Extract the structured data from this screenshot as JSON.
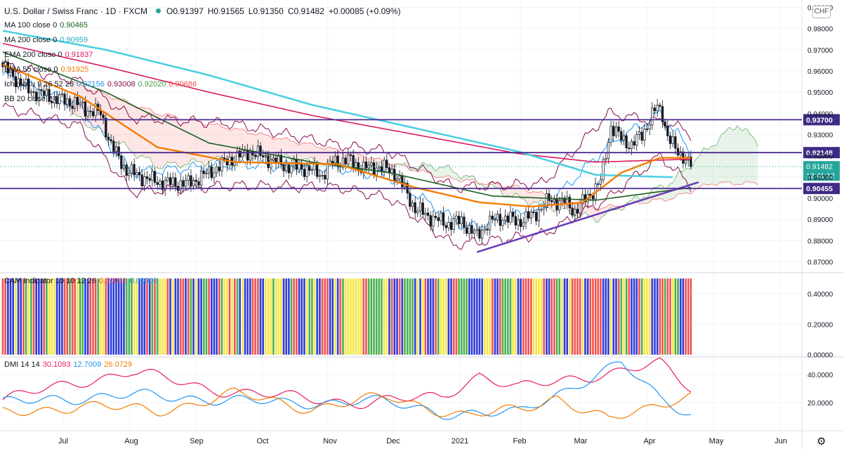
{
  "header": {
    "symbol": "U.S. Dollar / Swiss Franc · 1D · FXCM",
    "ohlc": {
      "open": "O0.91397",
      "high": "H0.91565",
      "low": "L0.91350",
      "close": "C0.91482",
      "change": "+0.00085 (+0.09%)"
    },
    "status_color": "#26a69a"
  },
  "currency": "CHF",
  "indicators": [
    {
      "label": "MA 100 close 0",
      "value": "0.90465",
      "color": "#1b5e20"
    },
    {
      "label": "MA 200 close 0",
      "value": "0.90959",
      "color": "#4dd0e1"
    },
    {
      "label": "EMA 200 close 0",
      "value": "0.91837",
      "color": "#d81b60"
    },
    {
      "label": "EMA 55 close 0",
      "value": "0.91925",
      "color": "#f57c00"
    },
    {
      "label": "Ichimoku 9 26 52 26",
      "values": [
        "0.92156",
        "0.93008",
        "0.92020",
        "0.90686"
      ],
      "colors": [
        "#2196f3",
        "#880e4f",
        "#43a047",
        "#ef5350"
      ]
    },
    {
      "label": "BB 20 close 2 0",
      "value": "",
      "color": "#880e4f"
    }
  ],
  "cam_legend": {
    "label": "CAM Indicator 10 10 12 26",
    "values": [
      "0.50000",
      "0.00000"
    ],
    "colors": [
      "#ef5350",
      "#2196f3"
    ]
  },
  "dmi_legend": {
    "label": "DMI 14 14",
    "values": [
      "30.1093",
      "12.7009",
      "26.0729"
    ],
    "colors": [
      "#e91e63",
      "#2196f3",
      "#f57c00"
    ]
  },
  "chart_data": {
    "type": "candlestick",
    "price_axis": {
      "ticks": [
        "0.99000",
        "0.98000",
        "0.97000",
        "0.96000",
        "0.95000",
        "0.94000",
        "0.93000",
        "0.92000",
        "0.91000",
        "0.90000",
        "0.89000",
        "0.88000",
        "0.87000"
      ],
      "range": [
        0.8655,
        0.9935
      ]
    },
    "levels": [
      {
        "value": 0.937,
        "label": "0.93700"
      },
      {
        "value": 0.92148,
        "label": "0.92148"
      },
      {
        "value": 0.90455,
        "label": "0.90455"
      }
    ],
    "last_price": {
      "value": 0.91482,
      "label": "0.91482",
      "countdown": "12:41:12"
    },
    "time_axis": [
      "Jul",
      "Aug",
      "Sep",
      "Oct",
      "Nov",
      "Dec",
      "2021",
      "Feb",
      "Mar",
      "Apr",
      "May",
      "Jun"
    ],
    "anchors": {
      "close": [
        [
          0,
          0.962
        ],
        [
          10,
          0.951
        ],
        [
          20,
          0.947
        ],
        [
          28,
          0.945
        ],
        [
          32,
          0.942
        ],
        [
          38,
          0.94
        ],
        [
          42,
          0.925
        ],
        [
          48,
          0.913
        ],
        [
          56,
          0.909
        ],
        [
          64,
          0.907
        ],
        [
          72,
          0.907
        ],
        [
          80,
          0.912
        ],
        [
          88,
          0.918
        ],
        [
          96,
          0.922
        ],
        [
          104,
          0.918
        ],
        [
          110,
          0.915
        ],
        [
          118,
          0.914
        ],
        [
          124,
          0.911
        ],
        [
          128,
          0.917
        ],
        [
          134,
          0.918
        ],
        [
          140,
          0.914
        ],
        [
          146,
          0.915
        ],
        [
          152,
          0.912
        ],
        [
          156,
          0.904
        ],
        [
          160,
          0.895
        ],
        [
          166,
          0.891
        ],
        [
          172,
          0.888
        ],
        [
          178,
          0.889
        ],
        [
          184,
          0.882
        ],
        [
          188,
          0.888
        ],
        [
          194,
          0.891
        ],
        [
          200,
          0.889
        ],
        [
          206,
          0.892
        ],
        [
          212,
          0.899
        ],
        [
          218,
          0.898
        ],
        [
          222,
          0.894
        ],
        [
          228,
          0.902
        ],
        [
          232,
          0.908
        ],
        [
          236,
          0.934
        ],
        [
          240,
          0.928
        ],
        [
          244,
          0.925
        ],
        [
          248,
          0.93
        ],
        [
          252,
          0.939
        ],
        [
          254,
          0.943
        ],
        [
          256,
          0.94
        ],
        [
          258,
          0.929
        ],
        [
          261,
          0.923
        ],
        [
          264,
          0.92
        ],
        [
          267,
          0.9148
        ]
      ],
      "ma100": [
        [
          0,
          0.969
        ],
        [
          40,
          0.95
        ],
        [
          80,
          0.926
        ],
        [
          120,
          0.917
        ],
        [
          150,
          0.912
        ],
        [
          190,
          0.901
        ],
        [
          230,
          0.899
        ],
        [
          267,
          0.905
        ]
      ],
      "ma200": [
        [
          0,
          0.979
        ],
        [
          40,
          0.97
        ],
        [
          80,
          0.958
        ],
        [
          120,
          0.944
        ],
        [
          160,
          0.933
        ],
        [
          200,
          0.922
        ],
        [
          230,
          0.911
        ],
        [
          267,
          0.9096
        ]
      ],
      "ema200": [
        [
          0,
          0.973
        ],
        [
          40,
          0.962
        ],
        [
          80,
          0.95
        ],
        [
          120,
          0.939
        ],
        [
          160,
          0.93
        ],
        [
          200,
          0.921
        ],
        [
          230,
          0.917
        ],
        [
          267,
          0.9184
        ]
      ],
      "ema55": [
        [
          0,
          0.963
        ],
        [
          30,
          0.948
        ],
        [
          60,
          0.924
        ],
        [
          90,
          0.917
        ],
        [
          130,
          0.916
        ],
        [
          160,
          0.905
        ],
        [
          185,
          0.898
        ],
        [
          205,
          0.896
        ],
        [
          225,
          0.898
        ],
        [
          240,
          0.912
        ],
        [
          255,
          0.919
        ],
        [
          267,
          0.919
        ]
      ],
      "bb_upper": [
        [
          0,
          0.963
        ],
        [
          30,
          0.955
        ],
        [
          50,
          0.938
        ],
        [
          90,
          0.935
        ],
        [
          130,
          0.925
        ],
        [
          150,
          0.922
        ],
        [
          175,
          0.905
        ],
        [
          210,
          0.907
        ],
        [
          235,
          0.94
        ],
        [
          260,
          0.935
        ],
        [
          267,
          0.93
        ]
      ],
      "bb_lower": [
        [
          0,
          0.943
        ],
        [
          30,
          0.934
        ],
        [
          50,
          0.903
        ],
        [
          90,
          0.906
        ],
        [
          130,
          0.905
        ],
        [
          150,
          0.9
        ],
        [
          175,
          0.878
        ],
        [
          210,
          0.883
        ],
        [
          235,
          0.9
        ],
        [
          255,
          0.92
        ],
        [
          267,
          0.906
        ]
      ],
      "tenkan": [
        [
          0,
          0.958
        ],
        [
          30,
          0.943
        ],
        [
          50,
          0.912
        ],
        [
          90,
          0.916
        ],
        [
          130,
          0.914
        ],
        [
          150,
          0.91
        ],
        [
          180,
          0.886
        ],
        [
          210,
          0.895
        ],
        [
          235,
          0.925
        ],
        [
          255,
          0.94
        ],
        [
          262,
          0.93
        ],
        [
          267,
          0.9216
        ]
      ],
      "span_a": [
        [
          26,
          0.94
        ],
        [
          60,
          0.915
        ],
        [
          100,
          0.92
        ],
        [
          140,
          0.915
        ],
        [
          170,
          0.915
        ],
        [
          200,
          0.9
        ],
        [
          230,
          0.89
        ],
        [
          260,
          0.908
        ],
        [
          275,
          0.925
        ],
        [
          285,
          0.935
        ],
        [
          293,
          0.926
        ]
      ],
      "span_b": [
        [
          26,
          0.955
        ],
        [
          60,
          0.94
        ],
        [
          100,
          0.93
        ],
        [
          140,
          0.92
        ],
        [
          170,
          0.91
        ],
        [
          200,
          0.905
        ],
        [
          230,
          0.895
        ],
        [
          260,
          0.9
        ],
        [
          275,
          0.907
        ],
        [
          293,
          0.907
        ]
      ],
      "cam_sequence": "rrbbbybbrgygrbbbrgyyybbbrrgrryggbbrrrgyyrbbbbbbbgggyybbbrbgrgyyyrbybbrrbrgbybbggrbbbrgyyryrgbybbbrrrbbyyygyyybbbgrrbbbyggybbrrrbbybrgyyyyyyyrrggggggyybrbbrbggggbybyrbbbrgyyybbrrggggbbbbbbyyyrbbrggggyybbrrrryyyyrbbrrggybbyrrrrybbrrr",
      "dmi_plus": [
        [
          0,
          19
        ],
        [
          20,
          23
        ],
        [
          50,
          25
        ],
        [
          80,
          23
        ],
        [
          110,
          19
        ],
        [
          140,
          22
        ],
        [
          170,
          13
        ],
        [
          200,
          12
        ],
        [
          230,
          40
        ],
        [
          240,
          48
        ],
        [
          255,
          22
        ],
        [
          267,
          12.7
        ]
      ],
      "dmi_minus": [
        [
          0,
          12
        ],
        [
          30,
          18
        ],
        [
          60,
          14
        ],
        [
          90,
          26
        ],
        [
          120,
          16
        ],
        [
          150,
          24
        ],
        [
          180,
          10
        ],
        [
          200,
          15
        ],
        [
          215,
          24
        ],
        [
          235,
          7
        ],
        [
          250,
          15
        ],
        [
          260,
          23
        ],
        [
          267,
          26
        ]
      ],
      "adx": [
        [
          0,
          22
        ],
        [
          30,
          35
        ],
        [
          50,
          42
        ],
        [
          80,
          30
        ],
        [
          110,
          24
        ],
        [
          140,
          20
        ],
        [
          170,
          24
        ],
        [
          185,
          40
        ],
        [
          200,
          30
        ],
        [
          230,
          40
        ],
        [
          255,
          47
        ],
        [
          267,
          30.1
        ]
      ]
    },
    "trendline": [
      [
        184,
        0.8745
      ],
      [
        270,
        0.9075
      ]
    ],
    "cam_axis": [
      "0.40000",
      "0.20000",
      "0.00000"
    ],
    "dmi_axis": [
      "40.0000",
      "20.0000"
    ]
  }
}
